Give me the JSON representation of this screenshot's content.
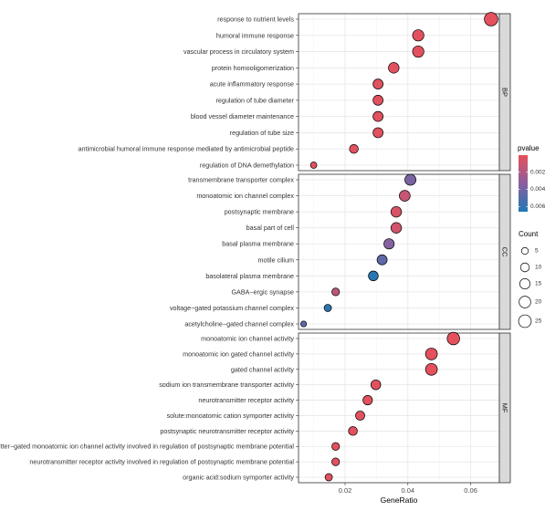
{
  "chart_data": {
    "type": "scatter",
    "xlabel": "GeneRatio",
    "ylabel": "",
    "xlim": [
      0.005,
      0.0695
    ],
    "xticks": [
      0.02,
      0.04,
      0.06
    ],
    "xtick_labels": [
      "0.02",
      "0.04",
      "0.06"
    ],
    "grid": true,
    "color_scale": {
      "title": "pvalue",
      "ticks": [
        0.002,
        0.004,
        0.006
      ],
      "tick_labels": [
        "0.002",
        "0.004",
        "0.006"
      ],
      "range": [
        0.0,
        0.0066
      ],
      "colors": {
        "low": "#e8505b",
        "mid": "#8a5f9e",
        "high": "#1f78b4"
      }
    },
    "size_scale": {
      "title": "Count",
      "breaks": [
        5,
        10,
        15,
        20,
        25
      ],
      "break_labels": [
        "5",
        "10",
        "15",
        "20",
        "25"
      ]
    },
    "panels": [
      {
        "name": "BP",
        "terms": [
          {
            "label": "response to nutrient levels",
            "x": 0.0665,
            "count": 29,
            "pvalue": 0.0001
          },
          {
            "label": "humoral immune response",
            "x": 0.0433,
            "count": 19,
            "pvalue": 0.0002
          },
          {
            "label": "vascular process in circulatory system",
            "x": 0.0433,
            "count": 19,
            "pvalue": 0.0002
          },
          {
            "label": "protein homooligomerization",
            "x": 0.0355,
            "count": 16,
            "pvalue": 0.0002
          },
          {
            "label": "acute inflammatory response",
            "x": 0.0305,
            "count": 14,
            "pvalue": 0.0002
          },
          {
            "label": "regulation of tube diameter",
            "x": 0.0305,
            "count": 14,
            "pvalue": 0.0002
          },
          {
            "label": "blood vessel diameter maintenance",
            "x": 0.0305,
            "count": 14,
            "pvalue": 0.0002
          },
          {
            "label": "regulation of tube size",
            "x": 0.0305,
            "count": 14,
            "pvalue": 0.0002
          },
          {
            "label": "antimicrobial humoral immune response mediated by antimicrobial peptide",
            "x": 0.0228,
            "count": 10,
            "pvalue": 0.0002
          },
          {
            "label": "regulation of DNA demethylation",
            "x": 0.01,
            "count": 4,
            "pvalue": 0.0003
          }
        ]
      },
      {
        "name": "CC",
        "terms": [
          {
            "label": "transmembrane transporter complex",
            "x": 0.0408,
            "count": 18,
            "pvalue": 0.0038
          },
          {
            "label": "monoatomic ion channel complex",
            "x": 0.039,
            "count": 17,
            "pvalue": 0.0012
          },
          {
            "label": "postsynaptic membrane",
            "x": 0.0363,
            "count": 16,
            "pvalue": 0.0006
          },
          {
            "label": "basal part of cell",
            "x": 0.0363,
            "count": 16,
            "pvalue": 0.0008
          },
          {
            "label": "basal plasma membrane",
            "x": 0.034,
            "count": 15,
            "pvalue": 0.0035
          },
          {
            "label": "motile cilium",
            "x": 0.0318,
            "count": 14,
            "pvalue": 0.0046
          },
          {
            "label": "basolateral plasma membrane",
            "x": 0.029,
            "count": 13,
            "pvalue": 0.0063
          },
          {
            "label": "GABA−ergic synapse",
            "x": 0.017,
            "count": 7,
            "pvalue": 0.0016
          },
          {
            "label": "voltage−gated potassium channel complex",
            "x": 0.0145,
            "count": 6,
            "pvalue": 0.0062
          },
          {
            "label": "acetylcholine−gated channel complex",
            "x": 0.0068,
            "count": 3,
            "pvalue": 0.0046
          }
        ]
      },
      {
        "name": "MF",
        "terms": [
          {
            "label": "monoatomic ion channel activity",
            "x": 0.0545,
            "count": 24,
            "pvalue": 0.0001
          },
          {
            "label": "monoatomic ion gated channel activity",
            "x": 0.0475,
            "count": 21,
            "pvalue": 0.0001
          },
          {
            "label": "gated channel activity",
            "x": 0.0475,
            "count": 21,
            "pvalue": 0.0001
          },
          {
            "label": "sodium ion transmembrane transporter activity",
            "x": 0.0298,
            "count": 13,
            "pvalue": 0.0002
          },
          {
            "label": "neurotransmitter receptor activity",
            "x": 0.0272,
            "count": 12,
            "pvalue": 0.0002
          },
          {
            "label": "solute:monoatomic cation symporter activity",
            "x": 0.0248,
            "count": 11,
            "pvalue": 0.0002
          },
          {
            "label": "postsynaptic neurotransmitter receptor activity",
            "x": 0.0225,
            "count": 10,
            "pvalue": 0.0002
          },
          {
            "label": "transmitter−gated monoatomic ion channel activity involved in regulation of postsynaptic membrane potential",
            "x": 0.017,
            "count": 7,
            "pvalue": 0.0002
          },
          {
            "label": "neurotransmitter receptor activity involved in regulation of postsynaptic membrane potential",
            "x": 0.017,
            "count": 7,
            "pvalue": 0.0002
          },
          {
            "label": "organic acid:sodium symporter activity",
            "x": 0.0148,
            "count": 6,
            "pvalue": 0.0002
          }
        ]
      }
    ]
  }
}
